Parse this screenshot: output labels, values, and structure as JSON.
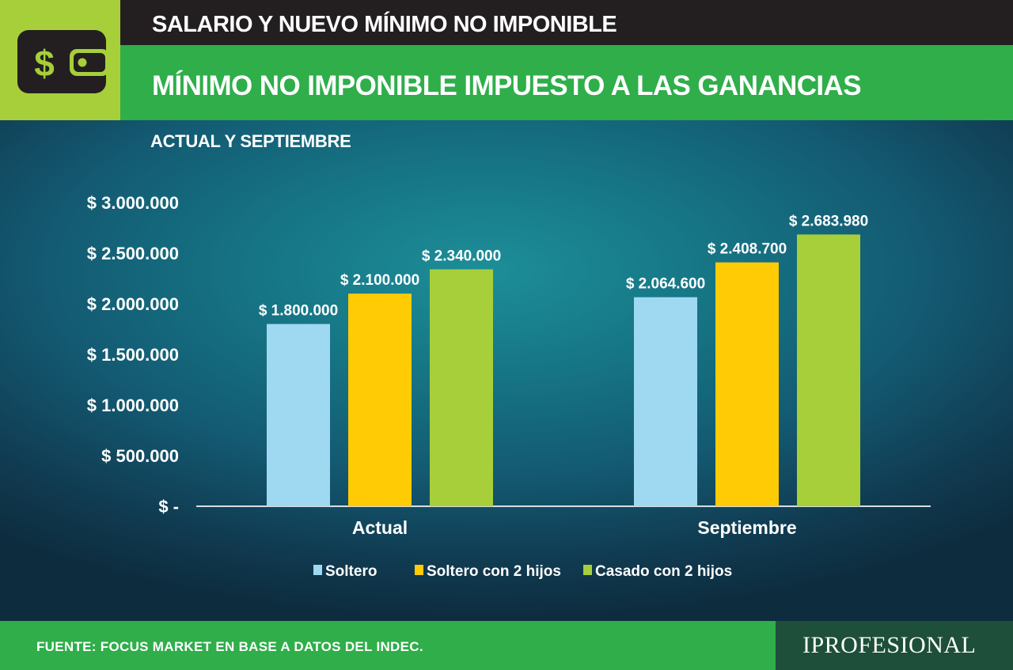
{
  "header": {
    "top_title": "SALARIO Y NUEVO MÍNIMO NO IMPONIBLE",
    "main_title": "MÍNIMO NO IMPONIBLE IMPUESTO A LAS GANANCIAS",
    "icon": "wallet-dollar-icon",
    "icon_glyph": "$"
  },
  "chart_data": {
    "type": "bar",
    "subtitle": "ACTUAL Y SEPTIEMBRE",
    "categories": [
      "Actual",
      "Septiembre"
    ],
    "series": [
      {
        "name": "Soltero",
        "color": "#9fd9f1",
        "values": [
          1800000,
          2064600
        ],
        "labels": [
          "$ 1.800.000",
          "$ 2.064.600"
        ]
      },
      {
        "name": "Soltero con 2 hijos",
        "color": "#ffcb05",
        "values": [
          2100000,
          2408700
        ],
        "labels": [
          "$ 2.100.000",
          "$ 2.408.700"
        ]
      },
      {
        "name": "Casado con 2 hijos",
        "color": "#a6cf3a",
        "values": [
          2340000,
          2683980
        ],
        "labels": [
          "$ 2.340.000",
          "$ 2.683.980"
        ]
      }
    ],
    "y_ticks": [
      {
        "value": 0,
        "label": "$ -"
      },
      {
        "value": 500000,
        "label": "$ 500.000"
      },
      {
        "value": 1000000,
        "label": "$ 1.000.000"
      },
      {
        "value": 1500000,
        "label": "$ 1.500.000"
      },
      {
        "value": 2000000,
        "label": "$ 2.000.000"
      },
      {
        "value": 2500000,
        "label": "$ 2.500.000"
      },
      {
        "value": 3000000,
        "label": "$ 3.000.000"
      }
    ],
    "ylim": [
      0,
      3000000
    ],
    "grid": false,
    "legend_position": "bottom-center"
  },
  "footer": {
    "source": "FUENTE: FOCUS MARKET EN BASE A DATOS DEL INDEC.",
    "brand": "IPROFESIONAL"
  },
  "colors": {
    "header_dark": "#231f20",
    "header_green": "#2fae4a",
    "icon_box": "#a6cf3a",
    "brand_box": "#1d4f3a"
  }
}
